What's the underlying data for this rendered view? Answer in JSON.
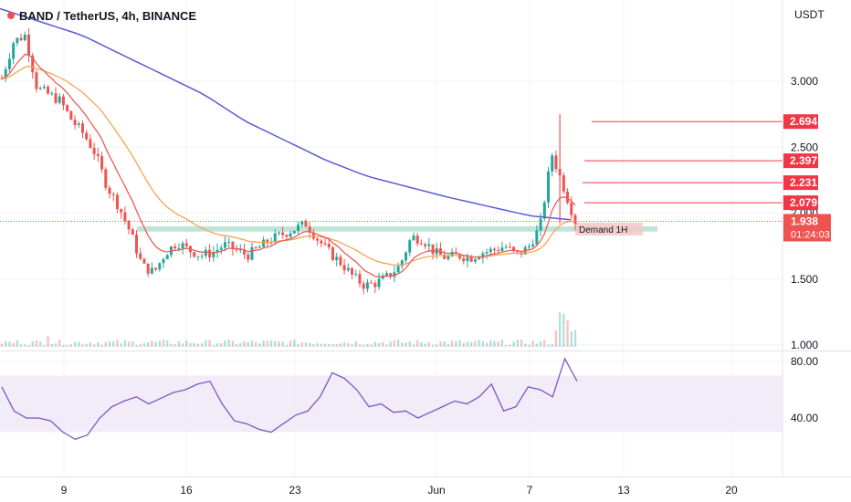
{
  "header": {
    "symbol_title": "BAND / TetherUS, 4h, BINANCE"
  },
  "colors": {
    "up": "#26a69a",
    "down": "#ef5350",
    "ema_fast": "#f05b5b",
    "ema_slow": "#f7a44f",
    "ma_long": "#5b5bd6",
    "rsi_line": "#7e57c2",
    "rsi_band": "#ede7f6",
    "demand_zone": "#a8dccb",
    "level_red": "#f23645",
    "last_price_tag": "#ef5350"
  },
  "chart_data": [
    {
      "type": "candlestick",
      "title": "BAND / TetherUS, 4h, BINANCE",
      "y_unit_label": "USDT",
      "x_ticks": [
        "9",
        "16",
        "23",
        "Jun",
        "7",
        "13",
        "20"
      ],
      "y_ticks": [
        "1.000",
        "1.500",
        "2.000",
        "2.500",
        "3.000"
      ],
      "ylim": [
        1.0,
        3.5
      ],
      "series": [
        {
          "name": "",
          "kind": "price",
          "approx_close_path": [
            3.02,
            3.3,
            3.35,
            2.95,
            2.9,
            2.85,
            2.7,
            2.6,
            2.45,
            2.2,
            2.05,
            1.85,
            1.6,
            1.55,
            1.7,
            1.78,
            1.72,
            1.68,
            1.7,
            1.76,
            1.72,
            1.68,
            1.74,
            1.8,
            1.84,
            1.88,
            1.92,
            1.8,
            1.7,
            1.62,
            1.52,
            1.45,
            1.47,
            1.52,
            1.6,
            1.82,
            1.8,
            1.7,
            1.66,
            1.68,
            1.66,
            1.7,
            1.72,
            1.75,
            1.68,
            1.74,
            1.9,
            2.45,
            2.2,
            1.938
          ]
        },
        {
          "name": "",
          "kind": "ema_fast"
        },
        {
          "name": "",
          "kind": "ema_slow"
        },
        {
          "name": "",
          "kind": "ma_long",
          "approx_path": [
            3.55,
            3.45,
            3.35,
            3.2,
            3.05,
            2.9,
            2.7,
            2.55,
            2.4,
            2.28,
            2.2,
            2.12,
            2.05,
            1.98,
            1.95
          ]
        }
      ],
      "demand_zone": {
        "label": "Demand 1H",
        "low": 1.86,
        "high": 1.9
      },
      "levels": [
        "2.694",
        "2.397",
        "2.231",
        "2.079"
      ],
      "last_price": {
        "value": "1.938",
        "countdown": "01:24:03"
      }
    },
    {
      "type": "line",
      "title": "",
      "y_ticks": [
        "40.00",
        "80.00"
      ],
      "band": [
        30,
        70
      ],
      "ylim": [
        20,
        90
      ],
      "series": [
        {
          "name": "",
          "approx_values": [
            62,
            45,
            40,
            40,
            38,
            30,
            25,
            28,
            40,
            48,
            52,
            55,
            50,
            54,
            58,
            60,
            64,
            66,
            50,
            38,
            36,
            32,
            30,
            36,
            42,
            45,
            55,
            72,
            68,
            60,
            48,
            50,
            44,
            45,
            40,
            44,
            48,
            52,
            50,
            55,
            64,
            45,
            48,
            62,
            60,
            55,
            82,
            66
          ]
        }
      ]
    }
  ]
}
